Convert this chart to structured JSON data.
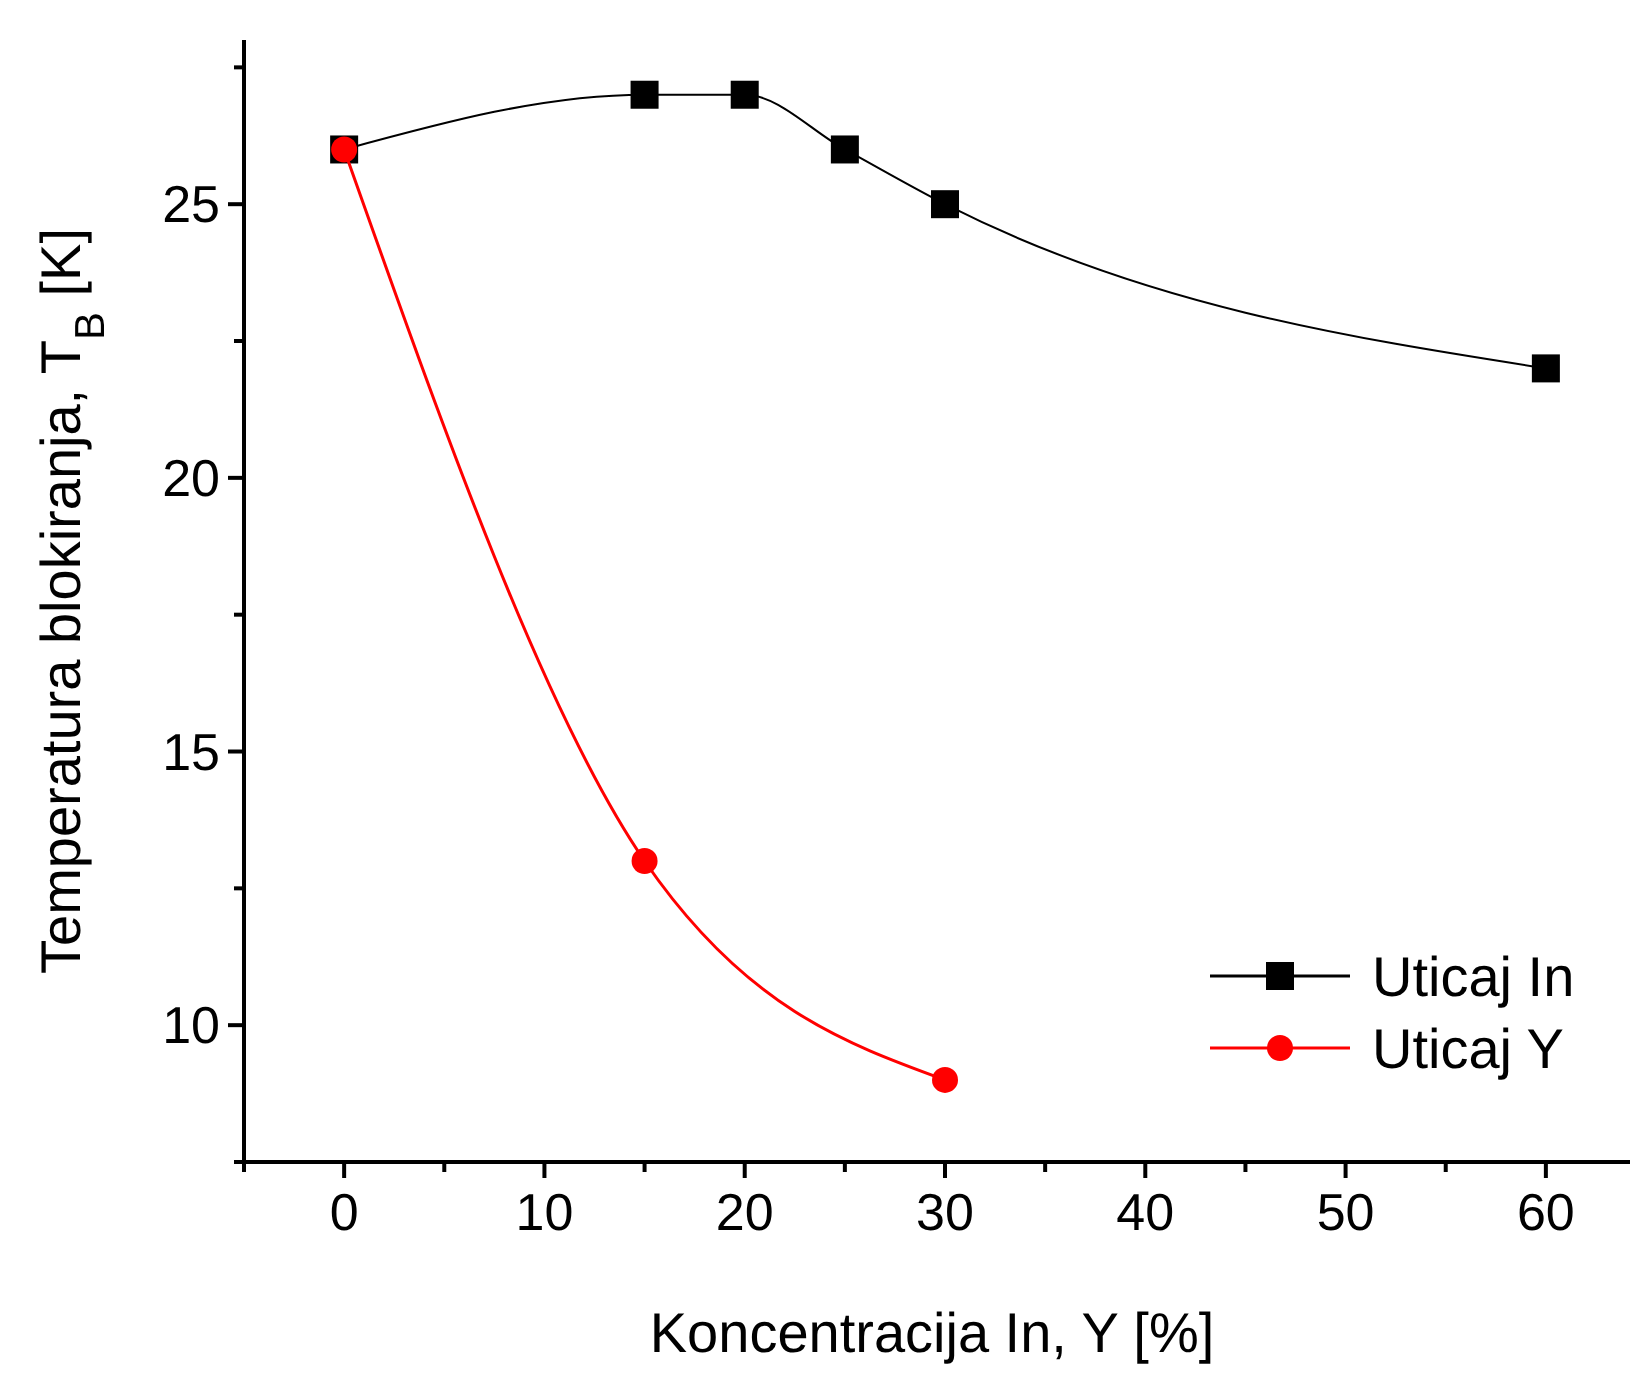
{
  "chart_data": {
    "type": "line",
    "xlabel": "Koncentracija In, Y [%]",
    "ylabel": "Temperatura blokiranja, T$_{B}$ [K]",
    "xlim": [
      -5,
      64.5
    ],
    "ylim": [
      7.5,
      28
    ],
    "xticks": [
      {
        "value": -5,
        "label": null
      },
      0,
      {
        "value": 5,
        "label": null
      },
      10,
      {
        "value": 15,
        "label": null
      },
      20,
      {
        "value": 25,
        "label": null
      },
      30,
      {
        "value": 35,
        "label": null
      },
      40,
      {
        "value": 45,
        "label": null
      },
      50,
      {
        "value": 55,
        "label": null
      },
      60
    ],
    "yticks": [
      {
        "value": 7.5,
        "label": null
      },
      10,
      {
        "value": 12.5,
        "label": null
      },
      15,
      {
        "value": 17.5,
        "label": null
      },
      20,
      {
        "value": 22.5,
        "label": null
      },
      25,
      {
        "value": 27.5,
        "label": null
      }
    ],
    "grid": false,
    "legend": "bottom right",
    "series": [
      {
        "name": "Uticaj In",
        "color": "#000000",
        "marker": "square",
        "x": [
          0,
          15,
          20,
          25,
          30,
          60
        ],
        "values": [
          26,
          27,
          27,
          26,
          25,
          22
        ]
      },
      {
        "name": "Uticaj Y",
        "color": "#ff0000",
        "marker": "circle",
        "x": [
          0,
          15,
          30
        ],
        "values": [
          26,
          13,
          9
        ]
      }
    ]
  }
}
